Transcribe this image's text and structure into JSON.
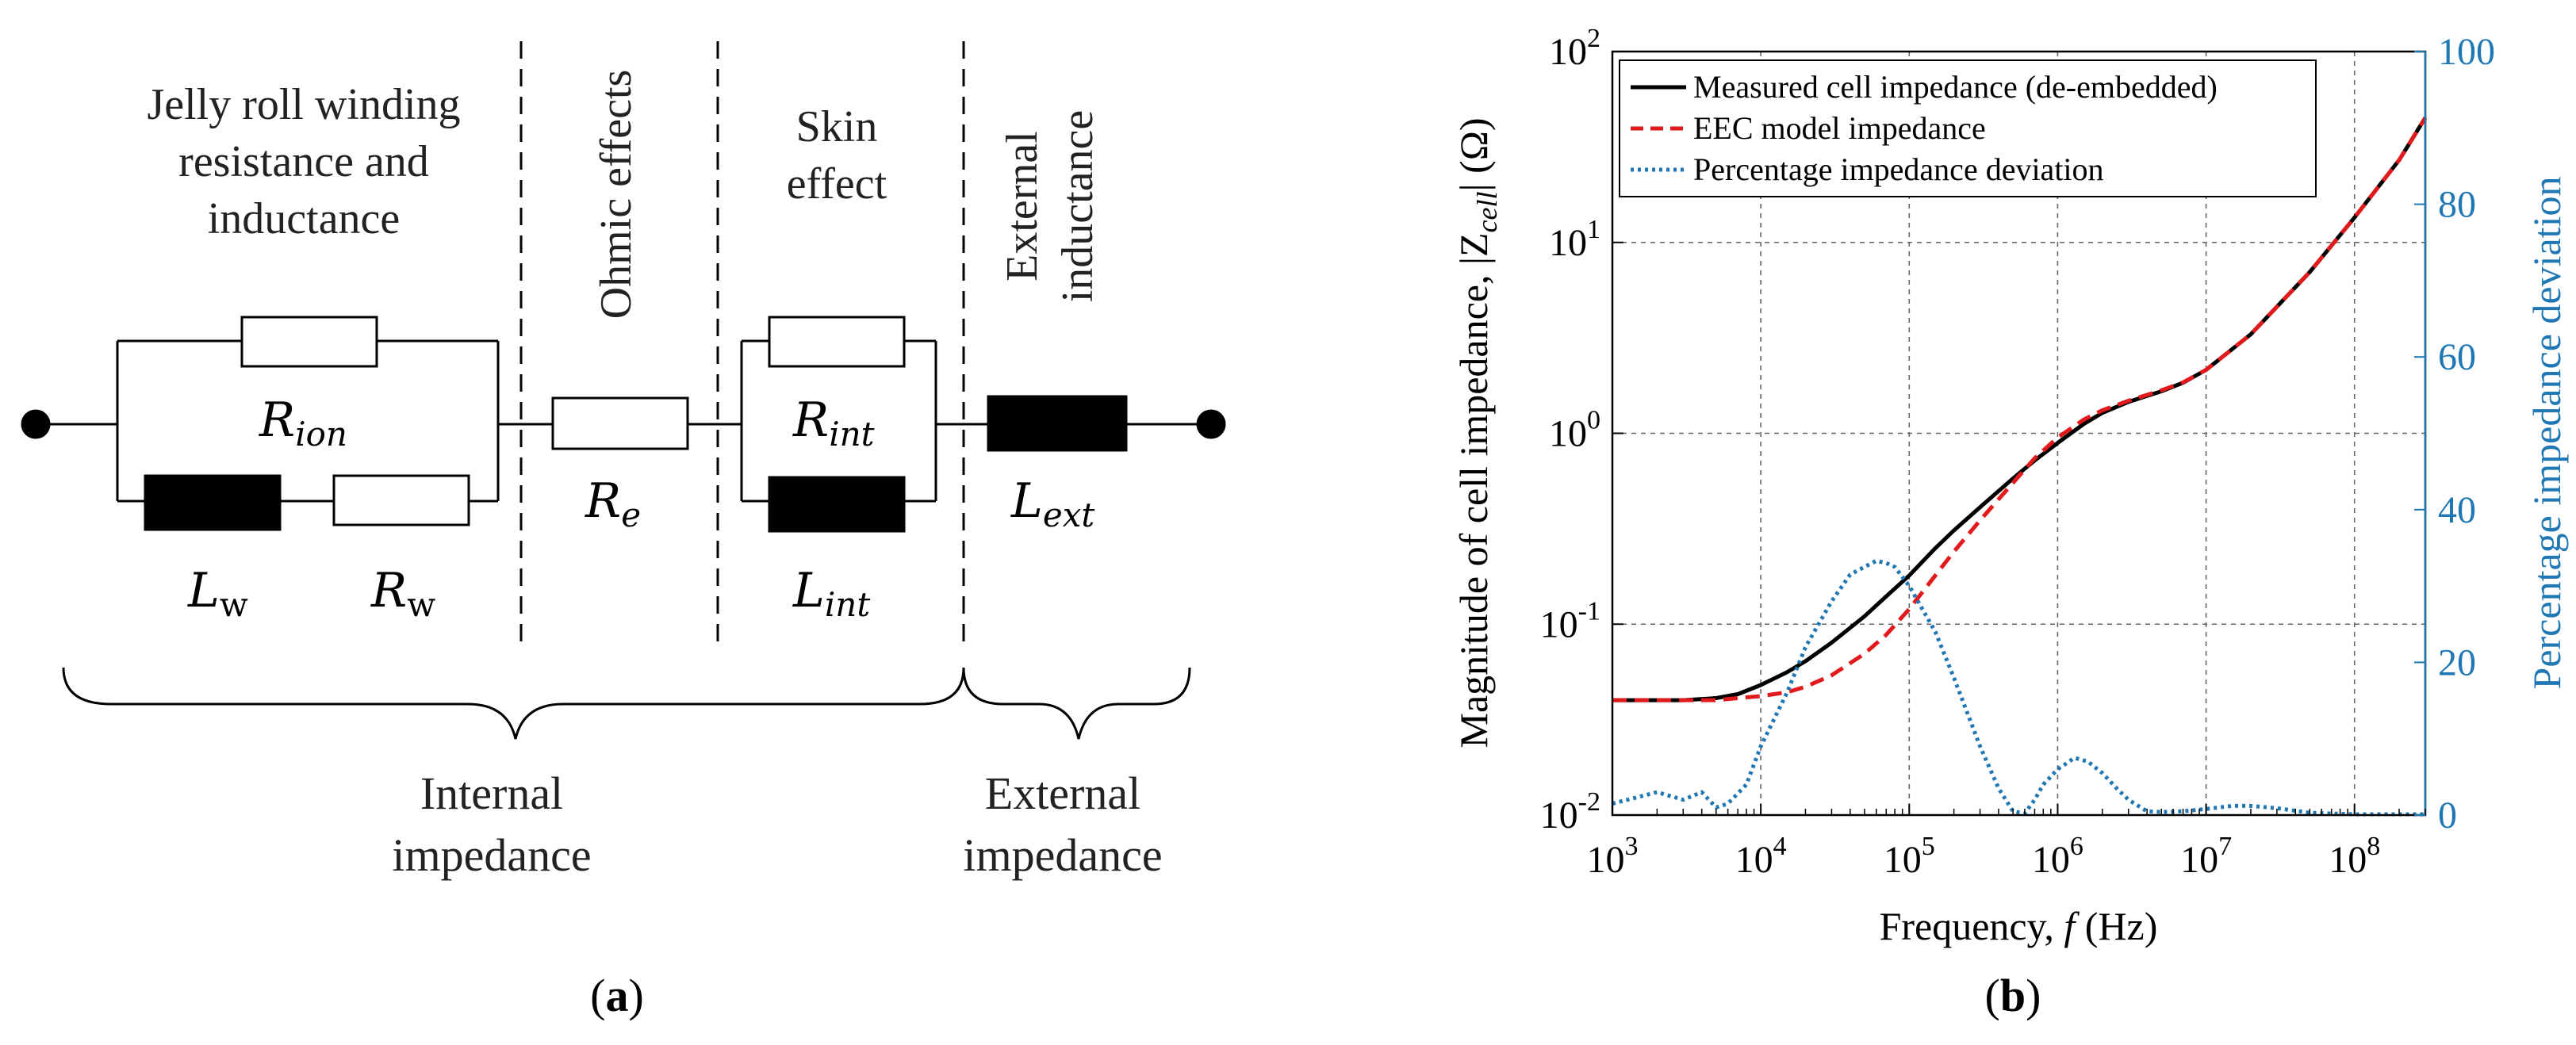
{
  "panel_a": {
    "caption_open": "(",
    "caption_letter": "a",
    "caption_close": ")",
    "section_labels": {
      "jelly_roll": [
        "Jelly roll winding",
        "resistance and",
        "inductance"
      ],
      "ohmic": "Ohmic effects",
      "skin": [
        "Skin",
        "effect"
      ],
      "external_inductance": [
        "External",
        "inductance"
      ]
    },
    "components": {
      "r_ion": {
        "base": "R",
        "sub": "ion"
      },
      "l_w": {
        "base": "L",
        "sub": "w"
      },
      "r_w": {
        "base": "R",
        "sub": "w"
      },
      "r_e": {
        "base": "R",
        "sub": "e"
      },
      "r_int": {
        "base": "R",
        "sub": "int"
      },
      "l_int": {
        "base": "L",
        "sub": "int"
      },
      "l_ext": {
        "base": "L",
        "sub": "ext"
      }
    },
    "brace_labels": {
      "internal": [
        "Internal",
        "impedance"
      ],
      "external": [
        "External",
        "impedance"
      ]
    }
  },
  "panel_b": {
    "caption_open": "(",
    "caption_letter": "b",
    "caption_close": ")",
    "left_axis_label": {
      "pre": "Magnitude of cell impedance, |Z",
      "sub": "cell",
      "post": "| (Ω)"
    },
    "right_axis_label": "Percentage impedance deviation",
    "x_axis_label": {
      "pre": "Frequency, ",
      "var": "f",
      "post": " (Hz)"
    }
  },
  "chart_data": {
    "type": "line",
    "x_scale": "log",
    "xlim": [
      1000,
      300000000
    ],
    "y_scale": "log",
    "ylim": [
      0.01,
      100
    ],
    "y2lim": [
      0,
      100
    ],
    "x_ticks": [
      {
        "base": "10",
        "exp": "3",
        "value": 1000
      },
      {
        "base": "10",
        "exp": "4",
        "value": 10000
      },
      {
        "base": "10",
        "exp": "5",
        "value": 100000
      },
      {
        "base": "10",
        "exp": "6",
        "value": 1000000
      },
      {
        "base": "10",
        "exp": "7",
        "value": 10000000
      },
      {
        "base": "10",
        "exp": "8",
        "value": 100000000
      }
    ],
    "y_ticks": [
      {
        "base": "10",
        "exp": "-2",
        "value": 0.01
      },
      {
        "base": "10",
        "exp": "-1",
        "value": 0.1
      },
      {
        "base": "10",
        "exp": "0",
        "value": 1
      },
      {
        "base": "10",
        "exp": "1",
        "value": 10
      },
      {
        "base": "10",
        "exp": "2",
        "value": 100
      }
    ],
    "y2_ticks": [
      {
        "label": "0",
        "value": 0
      },
      {
        "label": "20",
        "value": 20
      },
      {
        "label": "40",
        "value": 40
      },
      {
        "label": "60",
        "value": 60
      },
      {
        "label": "80",
        "value": 80
      },
      {
        "label": "100",
        "value": 100
      }
    ],
    "grid": true,
    "legend_position": "top-left",
    "colors": {
      "measured": "#000000",
      "model": "#e31a1c",
      "deviation": "#1f77b4"
    },
    "series": [
      {
        "name": "Measured cell impedance (de-embedded)",
        "style": "solid",
        "axis": "left",
        "x": [
          1000,
          2000,
          3000,
          5000,
          7000,
          10000,
          15000,
          20000,
          30000,
          50000,
          70000,
          100000,
          150000,
          200000,
          300000,
          500000,
          700000,
          1000000,
          1500000,
          2000000,
          3000000,
          5000000,
          7000000,
          10000000,
          20000000,
          50000000,
          100000000,
          200000000,
          300000000
        ],
        "y": [
          0.04,
          0.04,
          0.04,
          0.041,
          0.043,
          0.048,
          0.056,
          0.064,
          0.08,
          0.11,
          0.14,
          0.18,
          0.25,
          0.31,
          0.41,
          0.58,
          0.72,
          0.89,
          1.12,
          1.28,
          1.46,
          1.66,
          1.84,
          2.15,
          3.3,
          7.0,
          13.5,
          27,
          45
        ]
      },
      {
        "name": "EEC model impedance",
        "style": "dashed",
        "axis": "left",
        "x": [
          1000,
          2000,
          3000,
          5000,
          7000,
          10000,
          15000,
          20000,
          30000,
          50000,
          70000,
          100000,
          150000,
          200000,
          300000,
          500000,
          700000,
          1000000,
          1500000,
          2000000,
          3000000,
          5000000,
          7000000,
          10000000,
          20000000,
          50000000,
          100000000,
          200000000,
          300000000
        ],
        "y": [
          0.04,
          0.04,
          0.04,
          0.04,
          0.041,
          0.042,
          0.044,
          0.047,
          0.054,
          0.07,
          0.088,
          0.12,
          0.18,
          0.24,
          0.35,
          0.55,
          0.74,
          0.95,
          1.18,
          1.32,
          1.48,
          1.68,
          1.85,
          2.15,
          3.3,
          7.0,
          13.5,
          27,
          45
        ]
      },
      {
        "name": "Percentage impedance deviation",
        "style": "dotted",
        "axis": "right",
        "x": [
          1000,
          2000,
          3000,
          4000,
          5000,
          6000,
          8000,
          10000,
          15000,
          20000,
          30000,
          40000,
          50000,
          60000,
          70000,
          80000,
          100000,
          150000,
          200000,
          300000,
          400000,
          500000,
          600000,
          700000,
          800000,
          1000000,
          1300000,
          1600000,
          2000000,
          2500000,
          3000000,
          4000000,
          5000000,
          7000000,
          10000000,
          15000000,
          20000000,
          30000000,
          50000000,
          100000000,
          200000000,
          300000000
        ],
        "y": [
          1.5,
          3,
          2,
          3,
          1,
          1.5,
          4,
          9,
          16,
          22,
          28,
          31.5,
          32.5,
          33.3,
          33,
          32.5,
          30,
          24,
          18,
          9,
          3.5,
          0.5,
          0.2,
          2,
          4,
          6,
          7.5,
          7,
          5.5,
          3.5,
          2,
          0.5,
          0.4,
          0.5,
          0.8,
          1.2,
          1.2,
          0.9,
          0.3,
          0.1,
          0.1,
          0.1
        ]
      }
    ]
  }
}
